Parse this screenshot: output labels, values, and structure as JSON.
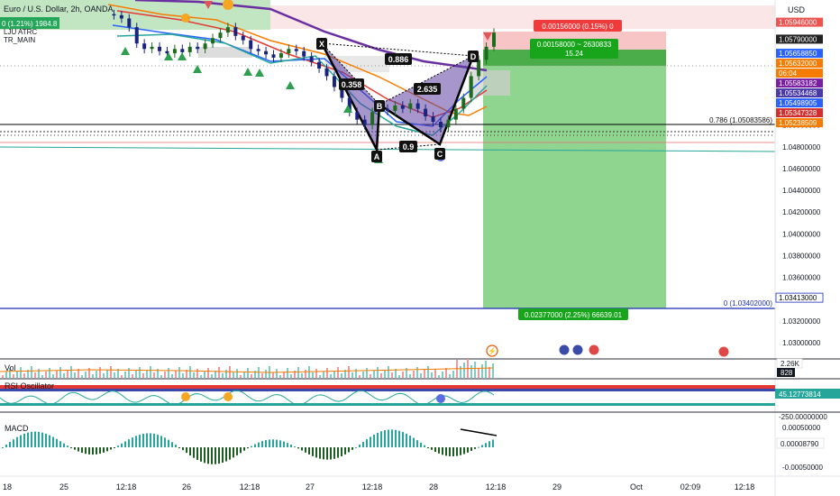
{
  "header": {
    "symbol_title": "Euro / U.S. Dollar, 2h, OANDA",
    "change_badge": "0 (1.21%) 1984.8",
    "indicator_1": "LJU ATRC",
    "indicator_2": "TR_MAIN",
    "currency": "USD"
  },
  "colors": {
    "bullish": "#26a69a",
    "bearish": "#ef5350",
    "pattern": "#5c3fa0",
    "target_zone": "#7fcf7f",
    "stop_zone": "#f7c5c5",
    "hline_blue": "#1b2bb8",
    "macd_hist": "#26a69a"
  },
  "price_axis": {
    "ticks": [
      "1.05000000",
      "1.04800000",
      "1.04600000",
      "1.04400000",
      "1.04200000",
      "1.04000000",
      "1.03800000",
      "1.03600000",
      "1.03400000",
      "1.03200000",
      "1.03000000"
    ],
    "tick_values": [
      1.05,
      1.048,
      1.046,
      1.044,
      1.042,
      1.04,
      1.038,
      1.036,
      1.034,
      1.032,
      1.03
    ],
    "badges": [
      {
        "text": "1.05946000",
        "bg": "#ef5350",
        "fg": "#ffffff",
        "value": 1.05946
      },
      {
        "text": "1.05790000",
        "bg": "#222222",
        "fg": "#ffffff",
        "value": 1.0579
      },
      {
        "text": "1.05658850",
        "bg": "#2962ff",
        "fg": "#ffffff",
        "value": 1.0566
      },
      {
        "text": "1.05632000",
        "bg": "#f57c00",
        "fg": "#ffffff",
        "value": 1.0563
      },
      {
        "text": "06:04",
        "bg": "#f57c00",
        "fg": "#ffffff",
        "value": 1.0561
      },
      {
        "text": "1.05583182",
        "bg": "#7b1fa2",
        "fg": "#ffffff",
        "value": 1.0558
      },
      {
        "text": "1.05534468",
        "bg": "#4a3aa8",
        "fg": "#ffffff",
        "value": 1.0553
      },
      {
        "text": "1.05498905",
        "bg": "#2962ff",
        "fg": "#ffffff",
        "value": 1.0549
      },
      {
        "text": "1.05347328",
        "bg": "#d32f2f",
        "fg": "#ffffff",
        "value": 1.0535
      },
      {
        "text": "1.05238509",
        "bg": "#f57c00",
        "fg": "#ffffff",
        "value": 1.0524
      },
      {
        "text": "1.03413000",
        "bg": "#ffffff",
        "fg": "#000000",
        "value": 1.03413
      }
    ]
  },
  "time_axis": {
    "labels": [
      "18",
      "25",
      "12:18",
      "26",
      "12:18",
      "27",
      "12:18",
      "28",
      "12:18",
      "29",
      "Oct",
      "02:09",
      "12:18"
    ]
  },
  "position": {
    "target_label": "0.02377000 (2.25%) 66639.01",
    "stop_label": "0.00156000 (0.15%) 0",
    "pnl_line1": "0.00158000 ~ 2630833",
    "pnl_line2": "15.24"
  },
  "fib_levels": {
    "fib_0786": "0.786 (1.05083586)",
    "fib_0": "0 (1.03402000)"
  },
  "pattern": {
    "points": [
      "X",
      "A",
      "B",
      "C",
      "D"
    ],
    "ratios": {
      "xb": "0.358",
      "ac": "0.9",
      "bd": "2.635",
      "xd": "0.886"
    }
  },
  "volume_pane": {
    "label": "Vol",
    "badge_1": "2.26K",
    "badge_2": "828"
  },
  "oscillator_pane": {
    "label": "RSI Oscillator",
    "badge_value": "45.12773814",
    "tick": "-250.00000000"
  },
  "macd_pane": {
    "label": "MACD",
    "ticks": [
      "0.00050000",
      "-0.00050000"
    ],
    "badge_value": "0.00008790"
  },
  "chart_data": {
    "type": "candlestick",
    "xlabel": "",
    "ylabel": "",
    "ylim": [
      1.0285,
      1.0615
    ],
    "price_series_approx": [
      1.0602,
      1.0601,
      1.0598,
      1.059,
      1.0575,
      1.057,
      1.0572,
      1.0568,
      1.0566,
      1.057,
      1.0567,
      1.0572,
      1.057,
      1.0575,
      1.058,
      1.0585,
      1.059,
      1.0582,
      1.0578,
      1.057,
      1.0568,
      1.0565,
      1.0562,
      1.0566,
      1.057,
      1.0568,
      1.0563,
      1.0558,
      1.0552,
      1.0545,
      1.0535,
      1.0525,
      1.0512,
      1.0505,
      1.05,
      1.0512,
      1.0515,
      1.0513,
      1.0518,
      1.0515,
      1.052,
      1.0515,
      1.0508,
      1.0503,
      1.0498,
      1.0505,
      1.0515,
      1.0525,
      1.0545,
      1.056,
      1.0572,
      1.0585
    ],
    "harmonic_points": [
      {
        "label": "X",
        "price": 1.057
      },
      {
        "label": "A",
        "price": 1.0497
      },
      {
        "label": "B",
        "price": 1.0523
      },
      {
        "label": "C",
        "price": 1.0502
      },
      {
        "label": "D",
        "price": 1.0569
      }
    ],
    "horizontal_levels": [
      {
        "label": "0.786 (1.05083586)",
        "price": 1.05083586
      },
      {
        "label": "0 (1.03402000)",
        "price": 1.03402
      }
    ],
    "legend": "none",
    "grid": false
  }
}
